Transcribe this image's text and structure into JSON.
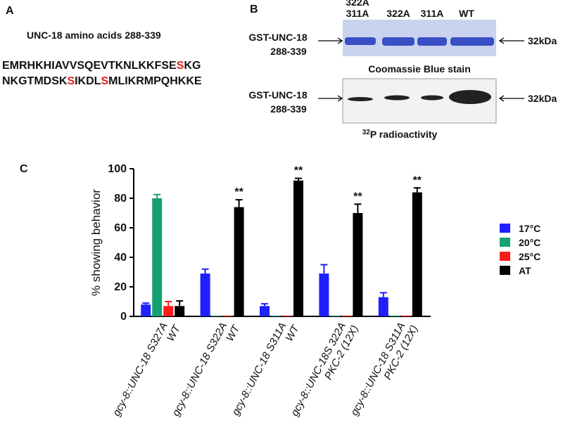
{
  "panel_a": {
    "label": "A",
    "title": "UNC-18  amino acids 288-339",
    "sequence": [
      [
        {
          "text": "EMRHKHIAVVSQEVTKNLKKFSE",
          "highlight": false
        },
        {
          "text": "S",
          "highlight": true
        },
        {
          "text": "KG",
          "highlight": false
        }
      ],
      [
        {
          "text": "NKGTMDSK",
          "highlight": false
        },
        {
          "text": "S",
          "highlight": true
        },
        {
          "text": "IKDL",
          "highlight": false
        },
        {
          "text": "S",
          "highlight": true
        },
        {
          "text": "MLIKRMPQHKKE",
          "highlight": false
        }
      ]
    ]
  },
  "panel_b": {
    "label": "B",
    "lanes": [
      [
        "322A",
        "311A"
      ],
      [
        "322A"
      ],
      [
        "311A"
      ],
      [
        "WT"
      ]
    ],
    "protein": [
      "GST-UNC-18",
      "288-339"
    ],
    "size_marker": "32kDa",
    "stain_label": "Coomassie  Blue  stain",
    "radio_label": {
      "superscript": "32",
      "text": "P radioactivity"
    }
  },
  "chart_data": {
    "type": "bar",
    "panel_label": "C",
    "ylabel": "% showing behavior",
    "categories": [
      [
        "gcy-8::UNC-18 S327A",
        "WT"
      ],
      [
        "gcy-8::UNC-18 S322A",
        "WT"
      ],
      [
        "gcy-8::UNC-18 S311A",
        "WT"
      ],
      [
        "gcy-8::UNC-18S 322A",
        "PKC-2 (12X)"
      ],
      [
        "gcy-8::UNC-18 S311A",
        "PKC-2 (12X)"
      ]
    ],
    "series": [
      {
        "name": "17°C",
        "color": "#1f1fff",
        "values": [
          8,
          29,
          7,
          29,
          13
        ],
        "errors": [
          1,
          3,
          1.5,
          6,
          3
        ]
      },
      {
        "name": "20°C",
        "color": "#16a070",
        "values": [
          80,
          0.5,
          0.5,
          0.5,
          0.5
        ],
        "errors": [
          2.5,
          null,
          null,
          null,
          null
        ]
      },
      {
        "name": "25°C",
        "color": "#ff1a1a",
        "values": [
          7,
          0.5,
          0.5,
          0.5,
          0.5
        ],
        "errors": [
          3,
          null,
          null,
          null,
          null
        ]
      },
      {
        "name": "AT",
        "color": "#000000",
        "values": [
          7,
          74,
          92,
          70,
          84
        ],
        "errors": [
          3.5,
          5,
          1.5,
          6,
          3
        ],
        "significance": [
          null,
          "**",
          "**",
          "**",
          "**"
        ]
      }
    ],
    "ylim": [
      0,
      100
    ],
    "yticks": [
      0,
      20,
      40,
      60,
      80,
      100
    ]
  }
}
